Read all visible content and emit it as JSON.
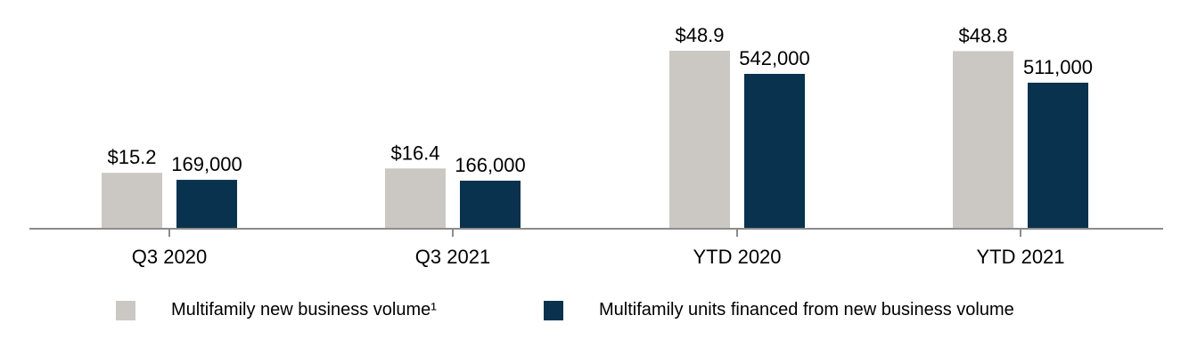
{
  "chart_data": {
    "type": "bar",
    "categories": [
      "Q3 2020",
      "Q3 2021",
      "YTD 2020",
      "YTD 2021"
    ],
    "series": [
      {
        "name": "Multifamily new business volume¹",
        "values": [
          15.2,
          16.4,
          48.9,
          48.8
        ],
        "labels": [
          "$15.2",
          "$16.4",
          "$48.9",
          "$48.8"
        ],
        "color": "#cbc8c4"
      },
      {
        "name": "Multifamily units financed from new business volume",
        "values": [
          169000,
          166000,
          542000,
          511000
        ],
        "labels": [
          "169,000",
          "166,000",
          "542,000",
          "511,000"
        ],
        "color": "#08324e"
      }
    ],
    "title": "",
    "xlabel": "",
    "ylabel": "",
    "grid": false,
    "legend_position": "bottom"
  }
}
